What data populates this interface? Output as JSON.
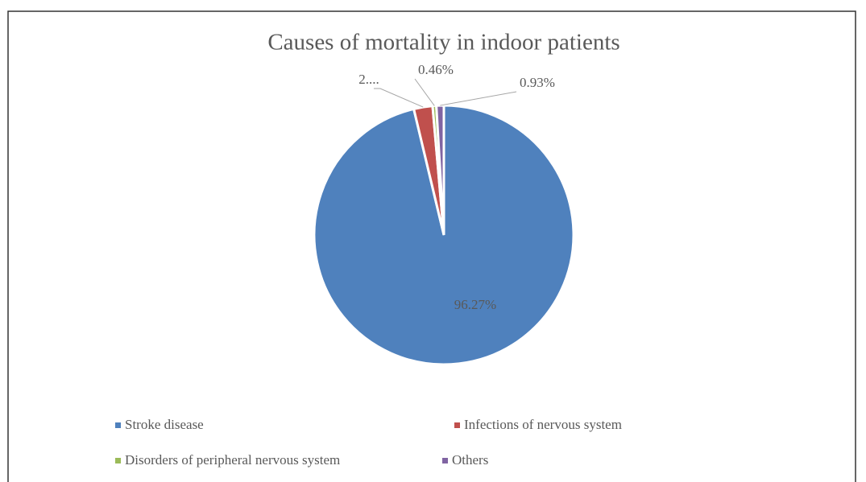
{
  "chart_data": {
    "type": "pie",
    "title": "Causes of mortality  in indoor patients",
    "categories": [
      "Stroke disease",
      "Infections of nervous system",
      "Disorders of peripheral nervous system",
      "Others"
    ],
    "values": [
      96.27,
      2.34,
      0.46,
      0.93
    ],
    "value_labels": [
      "96.27%",
      "2....",
      "0.46%",
      "0.93%"
    ],
    "colors": [
      "#4f81bd",
      "#c0504d",
      "#9bbb59",
      "#8064a2"
    ],
    "legend": "bottom"
  }
}
